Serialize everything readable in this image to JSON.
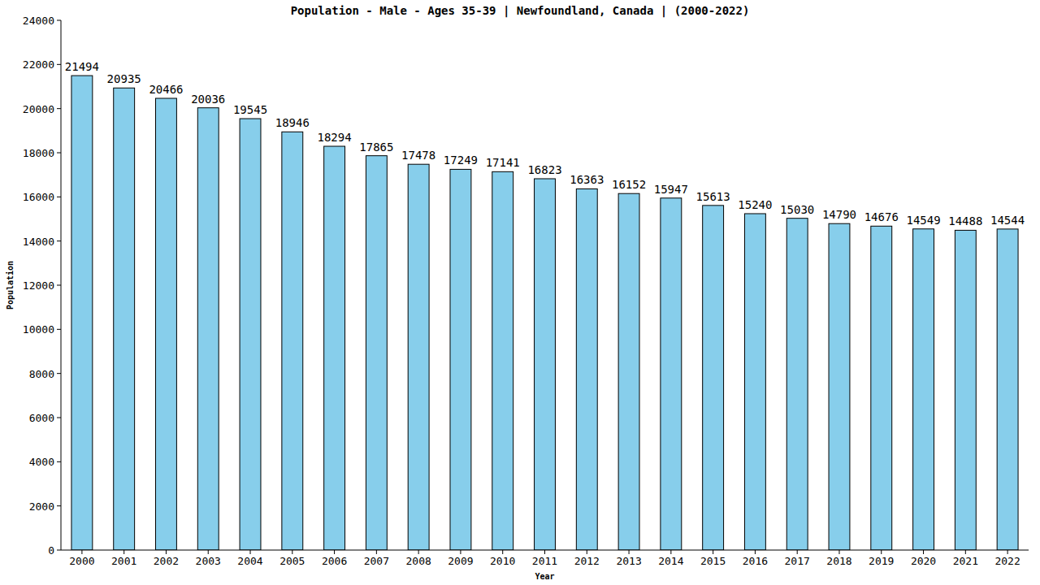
{
  "chart_data": {
    "type": "bar",
    "title": "Population - Male - Ages 35-39 | Newfoundland, Canada |  (2000-2022)",
    "x_label": "Year",
    "y_label": "Population",
    "categories": [
      "2000",
      "2001",
      "2002",
      "2003",
      "2004",
      "2005",
      "2006",
      "2007",
      "2008",
      "2009",
      "2010",
      "2011",
      "2012",
      "2013",
      "2014",
      "2015",
      "2016",
      "2017",
      "2018",
      "2019",
      "2020",
      "2021",
      "2022"
    ],
    "values": [
      21494,
      20935,
      20466,
      20036,
      19545,
      18946,
      18294,
      17865,
      17478,
      17249,
      17141,
      16823,
      16363,
      16152,
      15947,
      15613,
      15240,
      15030,
      14790,
      14676,
      14549,
      14488,
      14544
    ],
    "color": "#87ceeb",
    "ylim": [
      0,
      24000
    ],
    "yticks": [
      0,
      2000,
      4000,
      6000,
      8000,
      10000,
      12000,
      14000,
      16000,
      18000,
      20000,
      22000,
      24000
    ],
    "grid": false,
    "data_labels": true
  }
}
